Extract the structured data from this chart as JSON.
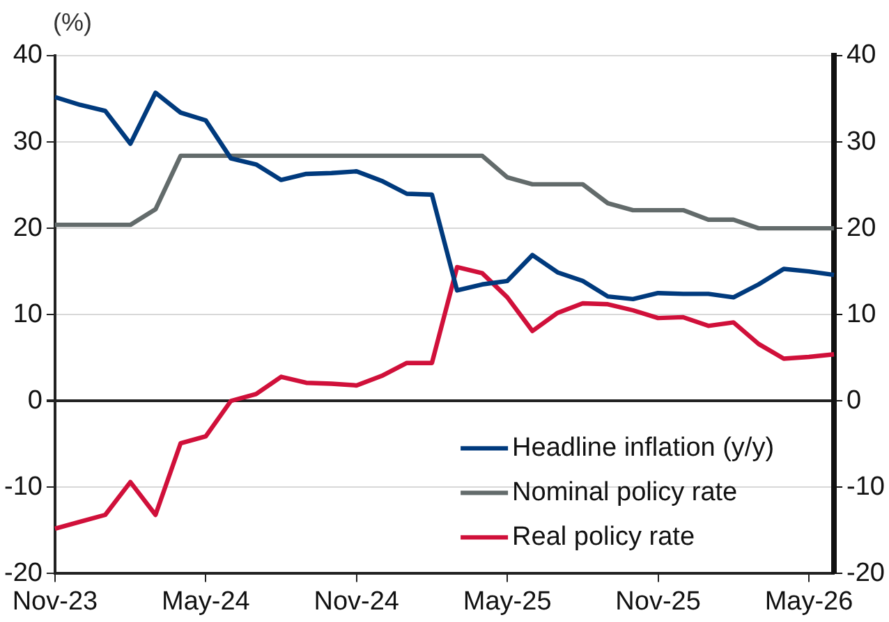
{
  "chart_data": {
    "type": "line",
    "ylabel": "(%)",
    "categories": [
      "Nov-23",
      null,
      null,
      null,
      null,
      null,
      "May-24",
      null,
      null,
      null,
      null,
      null,
      "Nov-24",
      null,
      null,
      null,
      null,
      null,
      "May-25",
      null,
      null,
      null,
      null,
      null,
      "Nov-25",
      null,
      null,
      null,
      null,
      null,
      "May-26",
      null
    ],
    "series": [
      {
        "name": "Headline inflation (y/y)",
        "color": "#003a7d",
        "values": [
          35.2,
          34.3,
          33.6,
          29.8,
          35.7,
          33.4,
          32.5,
          28.1,
          27.4,
          25.6,
          26.3,
          26.4,
          26.6,
          25.5,
          24.0,
          23.9,
          12.8,
          13.5,
          13.9,
          16.9,
          14.9,
          13.9,
          12.1,
          11.8,
          12.5,
          12.4,
          12.4,
          12.0,
          13.5,
          15.3,
          15.0,
          14.6
        ]
      },
      {
        "name": "Nominal policy rate",
        "color": "#636b6b",
        "values": [
          20.4,
          20.4,
          20.4,
          20.4,
          22.2,
          28.4,
          28.4,
          28.4,
          28.4,
          28.4,
          28.4,
          28.4,
          28.4,
          28.4,
          28.4,
          28.4,
          28.4,
          28.4,
          25.9,
          25.1,
          25.1,
          25.1,
          22.9,
          22.1,
          22.1,
          22.1,
          21.0,
          21.0,
          20.0,
          20.0,
          20.0,
          20.0
        ]
      },
      {
        "name": "Real policy rate",
        "color": "#d0103a",
        "values": [
          -14.8,
          -14.0,
          -13.2,
          -9.4,
          -13.2,
          -4.9,
          -4.1,
          0.0,
          0.8,
          2.8,
          2.1,
          2.0,
          1.8,
          2.9,
          4.4,
          4.4,
          15.5,
          14.8,
          12.0,
          8.1,
          10.2,
          11.3,
          11.2,
          10.5,
          9.6,
          9.7,
          8.7,
          9.1,
          6.6,
          4.9,
          5.1,
          5.4
        ]
      }
    ],
    "ylim": [
      -20,
      40
    ],
    "yticks": [
      -20,
      -10,
      0,
      10,
      20,
      30,
      40
    ],
    "y2lim": [
      -20,
      40
    ],
    "y2ticks": [
      -20,
      -10,
      0,
      10,
      20,
      30,
      40
    ],
    "grid": "y",
    "legend": "bottom right",
    "marker": "none",
    "line_style": "solid"
  }
}
